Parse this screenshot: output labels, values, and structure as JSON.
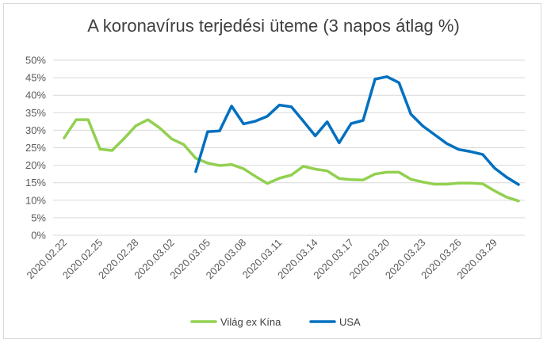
{
  "chart_data": {
    "type": "line",
    "title": "A koronavírus terjedési üteme (3 napos átlag %)",
    "xlabel": "",
    "ylabel": "",
    "ylim": [
      0,
      50
    ],
    "yticks": [
      "0%",
      "5%",
      "10%",
      "15%",
      "20%",
      "25%",
      "30%",
      "35%",
      "40%",
      "45%",
      "50%"
    ],
    "xtick_labels": [
      "2020.02.22",
      "2020.02.25",
      "2020.02.28",
      "2020.03.02",
      "2020.03.05",
      "2020.03.08",
      "2020.03.11",
      "2020.03.14",
      "2020.03.17",
      "2020.03.20",
      "2020.03.23",
      "2020.03.26",
      "2020.03.29"
    ],
    "x": [
      "2020.02.22",
      "2020.02.23",
      "2020.02.24",
      "2020.02.25",
      "2020.02.26",
      "2020.02.27",
      "2020.02.28",
      "2020.02.29",
      "2020.03.01",
      "2020.03.02",
      "2020.03.03",
      "2020.03.04",
      "2020.03.05",
      "2020.03.06",
      "2020.03.07",
      "2020.03.08",
      "2020.03.09",
      "2020.03.10",
      "2020.03.11",
      "2020.03.12",
      "2020.03.13",
      "2020.03.14",
      "2020.03.15",
      "2020.03.16",
      "2020.03.17",
      "2020.03.18",
      "2020.03.19",
      "2020.03.20",
      "2020.03.21",
      "2020.03.22",
      "2020.03.23",
      "2020.03.24",
      "2020.03.25",
      "2020.03.26",
      "2020.03.27",
      "2020.03.28",
      "2020.03.29",
      "2020.03.30",
      "2020.03.31"
    ],
    "grid": true,
    "legend_position": "bottom",
    "series": [
      {
        "name": "Világ ex Kína",
        "color": "#92d050",
        "values": [
          27.8,
          33.0,
          33.0,
          24.6,
          24.2,
          27.6,
          31.3,
          33.0,
          30.6,
          27.5,
          25.9,
          22.0,
          20.6,
          19.9,
          20.2,
          19.0,
          16.8,
          14.8,
          16.3,
          17.2,
          19.7,
          18.9,
          18.4,
          16.2,
          15.9,
          15.8,
          17.5,
          18.0,
          18.0,
          16.0,
          15.2,
          14.6,
          14.6,
          14.9,
          14.9,
          14.7,
          12.7,
          10.9,
          9.8
        ]
      },
      {
        "name": "USA",
        "color": "#0070c0",
        "values": [
          null,
          null,
          null,
          null,
          null,
          null,
          null,
          null,
          null,
          null,
          null,
          18.2,
          29.6,
          29.8,
          36.9,
          31.8,
          32.6,
          34.0,
          37.2,
          36.7,
          32.6,
          28.4,
          32.4,
          26.4,
          31.9,
          32.8,
          44.6,
          45.3,
          43.6,
          34.6,
          31.2,
          28.7,
          26.2,
          24.5,
          23.9,
          23.1,
          19.2,
          16.6,
          14.5
        ]
      }
    ]
  }
}
